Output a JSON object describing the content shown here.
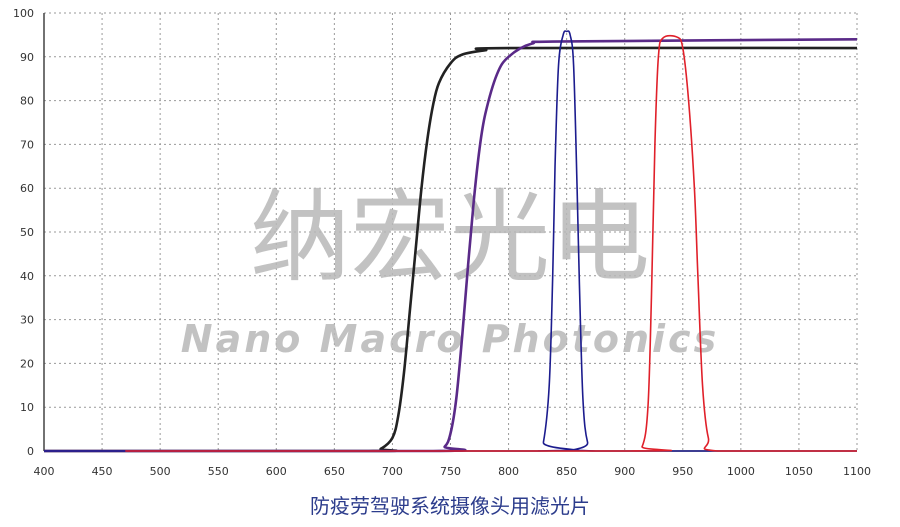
{
  "chart_data": {
    "type": "line",
    "title": "防疫劳驾驶系统摄像头用滤光片",
    "xlabel": "",
    "ylabel": "",
    "xlim": [
      400,
      1100
    ],
    "ylim": [
      0,
      100
    ],
    "x_ticks": [
      "400",
      "450",
      "500",
      "550",
      "600",
      "650",
      "700",
      "750",
      "800",
      "850",
      "900",
      "950",
      "1000",
      "1050",
      "1100"
    ],
    "y_ticks": [
      "0",
      "10",
      "20",
      "30",
      "40",
      "50",
      "60",
      "70",
      "80",
      "90",
      "100"
    ],
    "grid": true,
    "watermark": {
      "cn": "纳宏光电",
      "en": "Nano Macro Photonics"
    },
    "series": [
      {
        "color": "#222222",
        "points": [
          [
            400,
            0
          ],
          [
            680,
            0
          ],
          [
            690,
            0.5
          ],
          [
            700,
            3
          ],
          [
            705,
            8
          ],
          [
            710,
            18
          ],
          [
            715,
            32
          ],
          [
            720,
            46
          ],
          [
            725,
            60
          ],
          [
            730,
            71
          ],
          [
            735,
            79
          ],
          [
            740,
            84
          ],
          [
            750,
            88.5
          ],
          [
            760,
            90.5
          ],
          [
            780,
            91.5
          ],
          [
            800,
            92
          ],
          [
            1100,
            92
          ]
        ]
      },
      {
        "color": "#5a2a88",
        "points": [
          [
            400,
            0
          ],
          [
            735,
            0
          ],
          [
            745,
            1
          ],
          [
            750,
            4
          ],
          [
            755,
            12
          ],
          [
            760,
            26
          ],
          [
            765,
            42
          ],
          [
            770,
            57
          ],
          [
            775,
            69
          ],
          [
            780,
            77
          ],
          [
            790,
            86
          ],
          [
            800,
            90
          ],
          [
            820,
            93
          ],
          [
            850,
            93.5
          ],
          [
            1100,
            94
          ]
        ]
      },
      {
        "color": "#1c1c8e",
        "points": [
          [
            400,
            0
          ],
          [
            825,
            0
          ],
          [
            830,
            2
          ],
          [
            835,
            15
          ],
          [
            838,
            40
          ],
          [
            840,
            65
          ],
          [
            843,
            88
          ],
          [
            847,
            95
          ],
          [
            850,
            95.8
          ],
          [
            853,
            95
          ],
          [
            856,
            88
          ],
          [
            859,
            60
          ],
          [
            861,
            38
          ],
          [
            864,
            12
          ],
          [
            868,
            2
          ],
          [
            875,
            0
          ],
          [
            1100,
            0
          ]
        ]
      },
      {
        "color": "#e0202a",
        "points": [
          [
            470,
            0
          ],
          [
            905,
            0
          ],
          [
            915,
            1
          ],
          [
            920,
            10
          ],
          [
            923,
            35
          ],
          [
            926,
            70
          ],
          [
            929,
            90
          ],
          [
            933,
            94.3
          ],
          [
            945,
            94.5
          ],
          [
            950,
            92
          ],
          [
            955,
            80
          ],
          [
            960,
            60
          ],
          [
            963,
            40
          ],
          [
            967,
            15
          ],
          [
            972,
            3
          ],
          [
            980,
            0
          ],
          [
            1100,
            0
          ]
        ]
      }
    ]
  }
}
